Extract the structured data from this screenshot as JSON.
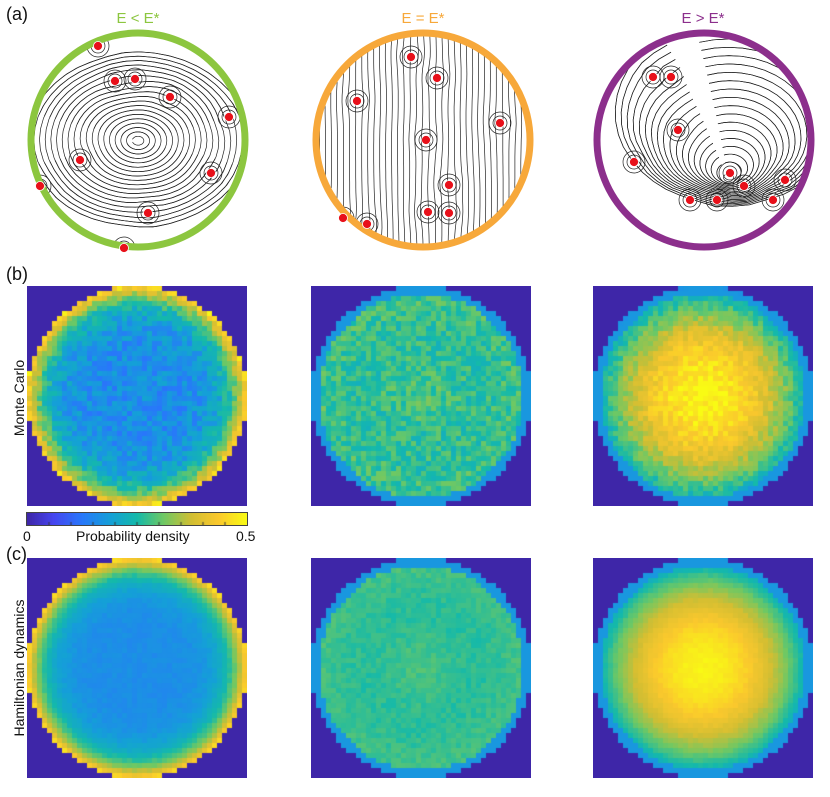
{
  "panel_labels": {
    "a": "(a)",
    "b": "(b)",
    "c": "(c)"
  },
  "columns": [
    {
      "title": "E < E*",
      "color": "#8cc63f"
    },
    {
      "title": "E = E*",
      "color": "#f7a83a"
    },
    {
      "title": "E > E*",
      "color": "#8c2f8c"
    }
  ],
  "row_labels": {
    "monte_carlo": "Monte Carlo",
    "hamiltonian": "Hamiltonian dynamics"
  },
  "colorbar": {
    "min": "0",
    "max": "0.5",
    "label": "Probability density"
  },
  "heatmaps": [
    {
      "row": "monte_carlo",
      "profile": "edge",
      "noise": 0.08
    },
    {
      "row": "monte_carlo",
      "profile": "flat",
      "noise": 0.08
    },
    {
      "row": "monte_carlo",
      "profile": "center",
      "noise": 0.06
    },
    {
      "row": "hamiltonian",
      "profile": "edge",
      "noise": 0.02
    },
    {
      "row": "hamiltonian",
      "profile": "flat",
      "noise": 0.03
    },
    {
      "row": "hamiltonian",
      "profile": "center",
      "noise": 0.015
    }
  ],
  "colors": {
    "dot": "#e8101a",
    "background_cmap_low": "#3e26a8"
  }
}
